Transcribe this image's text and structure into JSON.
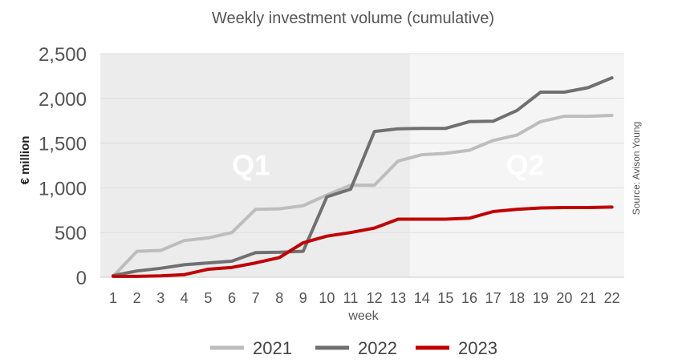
{
  "chart_data": {
    "type": "line",
    "title": "Weekly investment volume (cumulative)",
    "xlabel": "week",
    "ylabel": "€ million",
    "source": "Source: Avison Young",
    "ylim": [
      0,
      2500
    ],
    "yticks": [
      0,
      500,
      1000,
      1500,
      2000,
      2500
    ],
    "ytick_labels": [
      "0",
      "500",
      "1,000",
      "1,500",
      "2,000",
      "2,500"
    ],
    "categories": [
      "1",
      "2",
      "3",
      "4",
      "5",
      "6",
      "7",
      "8",
      "9",
      "10",
      "11",
      "12",
      "13",
      "14",
      "15",
      "16",
      "17",
      "18",
      "19",
      "20",
      "21",
      "22"
    ],
    "regions": [
      {
        "label": "Q1",
        "from_week": 1,
        "to_week": 13.5,
        "color": "#ececec"
      },
      {
        "label": "Q2",
        "from_week": 13.5,
        "to_week": 22,
        "color": "#f5f5f5"
      }
    ],
    "grid": true,
    "legend_position": "bottom",
    "series": [
      {
        "name": "2021",
        "color": "#bdbdbd",
        "values": [
          10,
          290,
          300,
          410,
          440,
          500,
          760,
          765,
          800,
          920,
          1030,
          1030,
          1300,
          1370,
          1385,
          1420,
          1530,
          1590,
          1740,
          1800,
          1800,
          1810
        ]
      },
      {
        "name": "2022",
        "color": "#707070",
        "values": [
          20,
          70,
          100,
          140,
          160,
          180,
          275,
          280,
          290,
          900,
          985,
          1630,
          1660,
          1665,
          1665,
          1740,
          1745,
          1865,
          2070,
          2070,
          2120,
          2230
        ]
      },
      {
        "name": "2023",
        "color": "#c00000",
        "values": [
          10,
          10,
          15,
          30,
          90,
          110,
          160,
          220,
          385,
          460,
          500,
          550,
          650,
          650,
          650,
          660,
          735,
          760,
          775,
          780,
          780,
          785
        ]
      }
    ]
  }
}
